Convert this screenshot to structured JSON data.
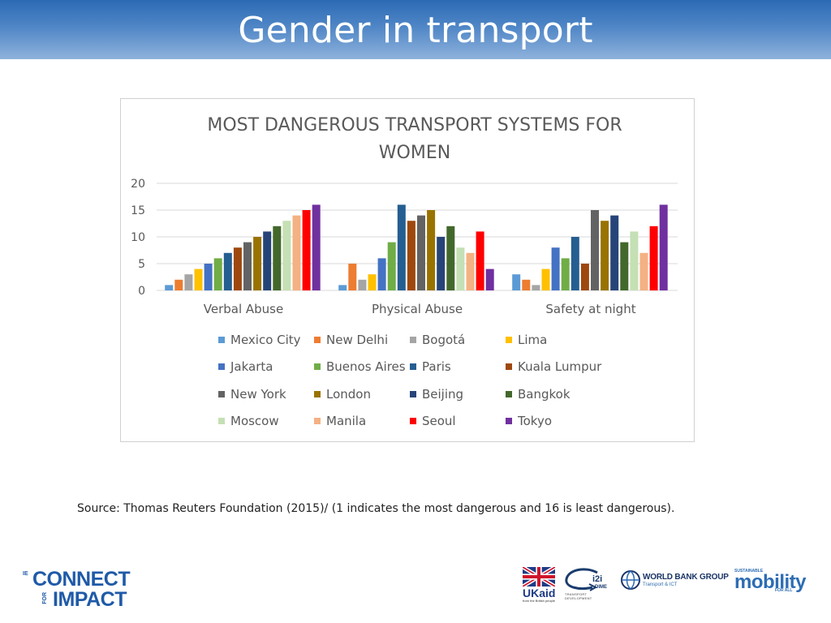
{
  "slide": {
    "title": "Gender in transport",
    "source": "Source: Thomas Reuters Foundation (2015)/ (1 indicates the most dangerous and 16 is least dangerous)."
  },
  "logos": {
    "ie": {
      "prefix": "IE",
      "line1": "CONNECT",
      "for": "FOR",
      "line2": "IMPACT"
    },
    "ukaid": {
      "text": "UKaid",
      "sub": "from the British people"
    },
    "dime": {
      "label": "i2i",
      "label2": "DIME",
      "sub": "TRANSPORT DEVELOPMENT"
    },
    "worldbank": {
      "name": "WORLD BANK GROUP",
      "sub": "Transport & ICT"
    },
    "mobility": {
      "top": "SUSTAINABLE",
      "name": "mobility",
      "sub": "FOR ALL"
    }
  },
  "chart_data": {
    "type": "bar",
    "title": "MOST DANGEROUS TRANSPORT SYSTEMS FOR WOMEN",
    "title_lines": [
      "MOST DANGEROUS TRANSPORT SYSTEMS FOR",
      "WOMEN"
    ],
    "categories": [
      "Verbal Abuse",
      "Physical Abuse",
      "Safety at night"
    ],
    "ylim": [
      0,
      20
    ],
    "yticks": [
      "0",
      "5",
      "10",
      "15",
      "20"
    ],
    "grid": true,
    "legend_position": "bottom",
    "series": [
      {
        "name": "Mexico City",
        "color": "#5b9bd5",
        "values": [
          1,
          1,
          3
        ]
      },
      {
        "name": "New Delhi",
        "color": "#ed7d31",
        "values": [
          2,
          5,
          2
        ]
      },
      {
        "name": "Bogotá",
        "color": "#a5a5a5",
        "values": [
          3,
          2,
          1
        ]
      },
      {
        "name": "Lima",
        "color": "#ffc000",
        "values": [
          4,
          3,
          4
        ]
      },
      {
        "name": "Jakarta",
        "color": "#4472c4",
        "values": [
          5,
          6,
          8
        ]
      },
      {
        "name": "Buenos Aires",
        "color": "#70ad47",
        "values": [
          6,
          9,
          6
        ]
      },
      {
        "name": "Paris",
        "color": "#255e91",
        "values": [
          7,
          16,
          10
        ]
      },
      {
        "name": "Kuala Lumpur",
        "color": "#9e480e",
        "values": [
          8,
          13,
          5
        ]
      },
      {
        "name": "New York",
        "color": "#636363",
        "values": [
          9,
          14,
          15
        ]
      },
      {
        "name": "London",
        "color": "#997300",
        "values": [
          10,
          15,
          13
        ]
      },
      {
        "name": "Beijing",
        "color": "#264478",
        "values": [
          11,
          10,
          14
        ]
      },
      {
        "name": "Bangkok",
        "color": "#43682b",
        "values": [
          12,
          12,
          9
        ]
      },
      {
        "name": "Moscow",
        "color": "#c5e0b4",
        "values": [
          13,
          8,
          11
        ]
      },
      {
        "name": "Manila",
        "color": "#f4b183",
        "values": [
          14,
          7,
          7
        ]
      },
      {
        "name": "Seoul",
        "color": "#ff0000",
        "values": [
          15,
          11,
          12
        ]
      },
      {
        "name": "Tokyo",
        "color": "#7030a0",
        "values": [
          16,
          4,
          16
        ]
      }
    ]
  }
}
